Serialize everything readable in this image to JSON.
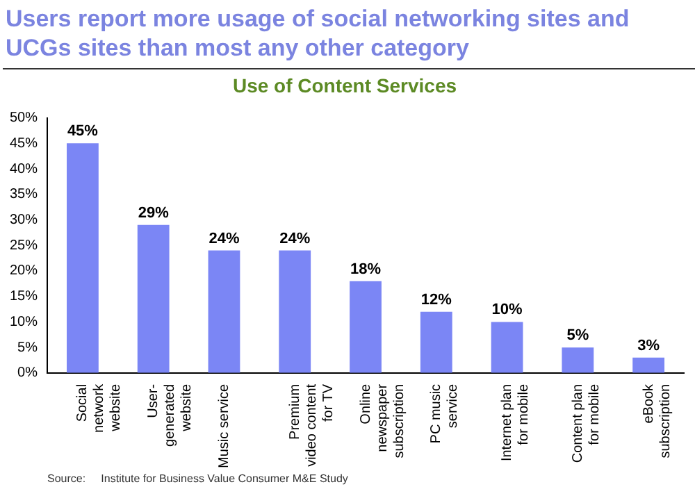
{
  "chart_data": {
    "type": "bar",
    "title": "Users report more usage of social networking sites and UCGs sites than most any other category",
    "subtitle": "Use of Content Services",
    "categories": [
      "Social\nnetwork\nwebsite",
      "User-\ngenerated\nwebsite",
      "Music service",
      "Premium\nvideo content\nfor TV",
      "Online\nnewspaper\nsubscription",
      "PC music\nservice",
      "Internet plan\nfor mobile",
      "Content plan\nfor mobile",
      "eBook\nsubscription"
    ],
    "values": [
      45,
      29,
      24,
      24,
      18,
      12,
      10,
      5,
      3
    ],
    "value_labels": [
      "45%",
      "29%",
      "24%",
      "24%",
      "18%",
      "12%",
      "10%",
      "5%",
      "3%"
    ],
    "color": "#7b86f5",
    "ylim": [
      0,
      50
    ],
    "yticks": [
      {
        "value": 0,
        "label": "0%"
      },
      {
        "value": 5,
        "label": "5%"
      },
      {
        "value": 10,
        "label": "10%"
      },
      {
        "value": 15,
        "label": "15%"
      },
      {
        "value": 20,
        "label": "20%"
      },
      {
        "value": 25,
        "label": "25%"
      },
      {
        "value": 30,
        "label": "30%"
      },
      {
        "value": 35,
        "label": "35%"
      },
      {
        "value": 40,
        "label": "40%"
      },
      {
        "value": 45,
        "label": "45%"
      },
      {
        "value": 50,
        "label": "50%"
      }
    ],
    "grid": false,
    "legend": false,
    "annotations": [
      "Source:     Institute for Business Value Consumer M&E Study"
    ]
  }
}
